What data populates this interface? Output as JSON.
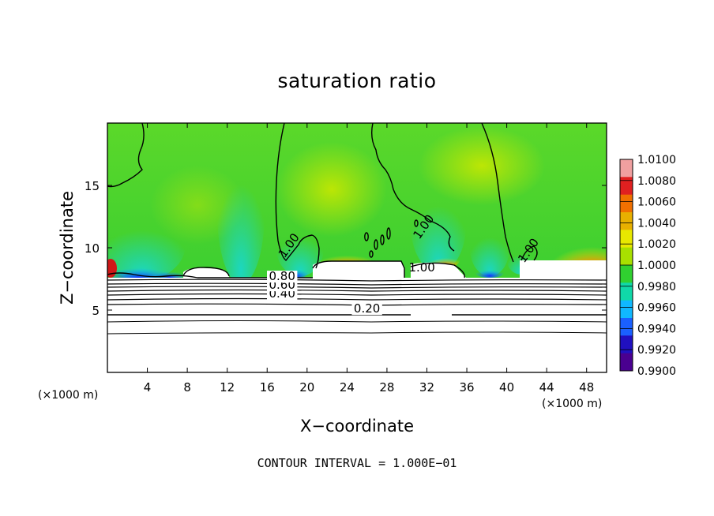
{
  "chart_data": {
    "type": "heatmap",
    "title": "saturation ratio",
    "xlabel": "X−coordinate",
    "ylabel": "Z−coordinate",
    "x_unit": "(×1000 m)",
    "z_unit": "(×1000 m)",
    "xlim": [
      0,
      50
    ],
    "ylim": [
      0,
      20
    ],
    "x_ticks": [
      4,
      8,
      12,
      16,
      20,
      24,
      28,
      32,
      36,
      40,
      44,
      48
    ],
    "y_ticks": [
      5,
      10,
      15
    ],
    "grid": false,
    "colorbar": {
      "placement": "right",
      "range": [
        0.99,
        1.01
      ],
      "levels": [
        "1.0100",
        "1.0080",
        "1.0060",
        "1.0040",
        "1.0020",
        "1.0000",
        "0.9980",
        "0.9960",
        "0.9940",
        "0.9920",
        "0.9900"
      ],
      "colors": [
        "#f0a0a0",
        "#e02020",
        "#f07000",
        "#e8b000",
        "#e8e800",
        "#a8e000",
        "#30d030",
        "#10d8a8",
        "#10b8ff",
        "#1a60ff",
        "#2010c0",
        "#4a0090"
      ]
    },
    "contour_labels": [
      {
        "text": "0.20",
        "x": 26.0,
        "y": 4.8
      },
      {
        "text": "0.40",
        "x": 17.5,
        "y": 6.0
      },
      {
        "text": "0.60",
        "x": 17.5,
        "y": 6.7
      },
      {
        "text": "0.80",
        "x": 17.5,
        "y": 7.4
      },
      {
        "text": "1.00",
        "x": 18.5,
        "y": 10.0
      },
      {
        "text": "1.00",
        "x": 32.0,
        "y": 11.5
      },
      {
        "text": "1.00",
        "x": 42.5,
        "y": 9.6
      },
      {
        "text": "1.00",
        "x": 31.5,
        "y": 8.1
      }
    ],
    "contour_interval_label": "CONTOUR INTERVAL = 1.000E−01"
  }
}
